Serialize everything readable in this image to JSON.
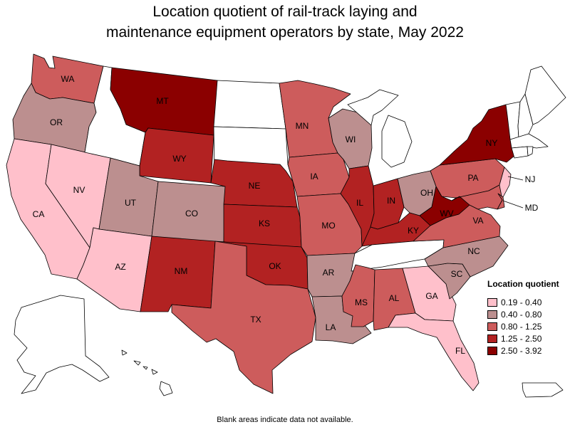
{
  "title_lines": [
    "Location quotient of rail-track laying and",
    "maintenance equipment operators by state, May 2022"
  ],
  "legend": {
    "title": "Location quotient",
    "items": [
      {
        "label": "0.19 - 0.40",
        "color": "#ffc0cb"
      },
      {
        "label": "0.40 - 0.80",
        "color": "#bc8f8f"
      },
      {
        "label": "0.80 - 1.25",
        "color": "#cd5c5c"
      },
      {
        "label": "1.25 - 2.50",
        "color": "#b22222"
      },
      {
        "label": "2.50 - 3.92",
        "color": "#8b0000"
      }
    ]
  },
  "note": "Blank areas indicate data not available.",
  "states": [
    {
      "abbr": "WA",
      "cls": 2
    },
    {
      "abbr": "OR",
      "cls": 1
    },
    {
      "abbr": "CA",
      "cls": 0
    },
    {
      "abbr": "NV",
      "cls": 0
    },
    {
      "abbr": "ID",
      "cls": null
    },
    {
      "abbr": "MT",
      "cls": 4
    },
    {
      "abbr": "WY",
      "cls": 3
    },
    {
      "abbr": "UT",
      "cls": 1
    },
    {
      "abbr": "CO",
      "cls": 1
    },
    {
      "abbr": "AZ",
      "cls": 0
    },
    {
      "abbr": "NM",
      "cls": 3
    },
    {
      "abbr": "ND",
      "cls": null
    },
    {
      "abbr": "SD",
      "cls": null
    },
    {
      "abbr": "NE",
      "cls": 3
    },
    {
      "abbr": "KS",
      "cls": 3
    },
    {
      "abbr": "OK",
      "cls": 3
    },
    {
      "abbr": "TX",
      "cls": 2
    },
    {
      "abbr": "MN",
      "cls": 2
    },
    {
      "abbr": "IA",
      "cls": 2
    },
    {
      "abbr": "MO",
      "cls": 2
    },
    {
      "abbr": "AR",
      "cls": 1
    },
    {
      "abbr": "LA",
      "cls": 1
    },
    {
      "abbr": "WI",
      "cls": 1
    },
    {
      "abbr": "IL",
      "cls": 3
    },
    {
      "abbr": "MI",
      "cls": null
    },
    {
      "abbr": "IN",
      "cls": 3
    },
    {
      "abbr": "OH",
      "cls": 1
    },
    {
      "abbr": "KY",
      "cls": 3
    },
    {
      "abbr": "TN",
      "cls": null
    },
    {
      "abbr": "MS",
      "cls": 2
    },
    {
      "abbr": "AL",
      "cls": 2
    },
    {
      "abbr": "GA",
      "cls": 0
    },
    {
      "abbr": "FL",
      "cls": 0
    },
    {
      "abbr": "SC",
      "cls": 1
    },
    {
      "abbr": "NC",
      "cls": 1
    },
    {
      "abbr": "VA",
      "cls": 2
    },
    {
      "abbr": "WV",
      "cls": 4
    },
    {
      "abbr": "PA",
      "cls": 2
    },
    {
      "abbr": "NY",
      "cls": 4
    },
    {
      "abbr": "NJ",
      "cls": 0
    },
    {
      "abbr": "MD",
      "cls": 2
    },
    {
      "abbr": "DE",
      "cls": 2
    },
    {
      "abbr": "VT",
      "cls": null
    },
    {
      "abbr": "NH",
      "cls": null
    },
    {
      "abbr": "ME",
      "cls": null
    },
    {
      "abbr": "MA",
      "cls": null
    },
    {
      "abbr": "CT",
      "cls": null
    },
    {
      "abbr": "RI",
      "cls": null
    },
    {
      "abbr": "AK",
      "cls": null
    },
    {
      "abbr": "HI",
      "cls": null
    },
    {
      "abbr": "PR",
      "cls": null
    }
  ],
  "labeled_states": [
    "WA",
    "OR",
    "CA",
    "NV",
    "MT",
    "WY",
    "UT",
    "CO",
    "AZ",
    "NM",
    "NE",
    "KS",
    "OK",
    "TX",
    "MN",
    "IA",
    "MO",
    "AR",
    "LA",
    "WI",
    "IL",
    "IN",
    "OH",
    "KY",
    "MS",
    "AL",
    "GA",
    "FL",
    "SC",
    "NC",
    "VA",
    "WV",
    "PA",
    "NY",
    "NJ",
    "MD"
  ]
}
